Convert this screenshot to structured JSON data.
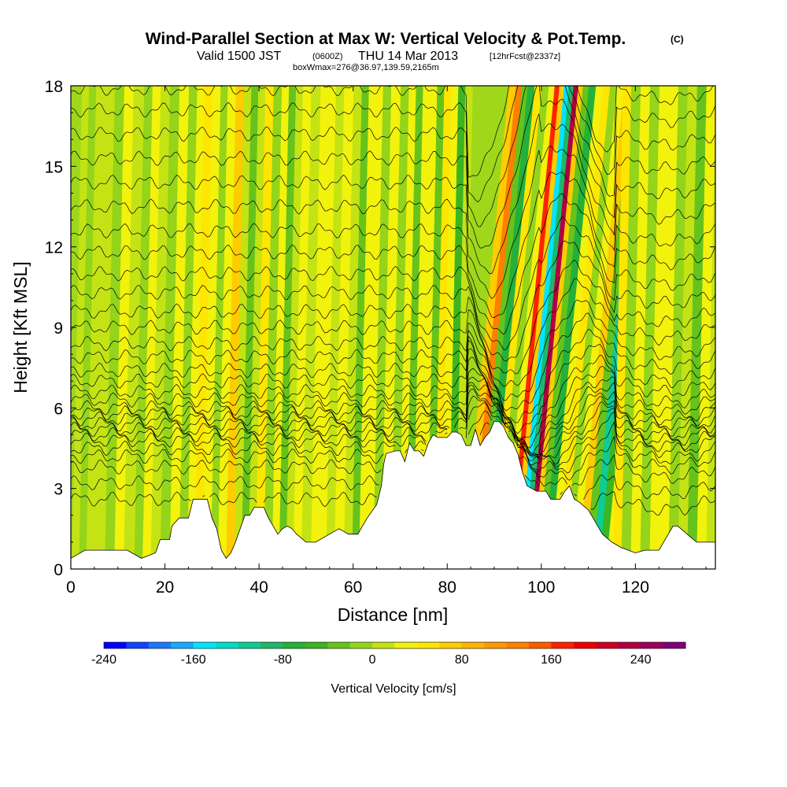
{
  "title": {
    "main": "Wind-Parallel Section at Max W: Vertical Velocity & Pot.Temp.",
    "copyright": "(C)",
    "valid_prefix": "Valid 1500 JST",
    "valid_utc": "(0600Z)",
    "valid_date": "THU 14 Mar 2013",
    "forecast": "[12hrFcst@2337z]",
    "box_info": "boxWmax=276@36.97,139.59,2165m"
  },
  "chart_data": {
    "type": "heatmap",
    "xlabel": "Distance [nm]",
    "ylabel": "Height [Kft MSL]",
    "xlim": [
      0,
      137
    ],
    "ylim": [
      0,
      18
    ],
    "x_ticks": [
      "0",
      "20",
      "40",
      "60",
      "80",
      "100",
      "120"
    ],
    "x_tick_values": [
      0,
      20,
      40,
      60,
      80,
      100,
      120
    ],
    "y_ticks": [
      "0",
      "3",
      "6",
      "9",
      "12",
      "15",
      "18"
    ],
    "y_tick_values": [
      0,
      3,
      6,
      9,
      12,
      15,
      18
    ],
    "colorbar": {
      "label": "Vertical Velocity [cm/s]",
      "min": -240,
      "max": 280,
      "step": 20,
      "tick_labels": [
        "-240",
        "-160",
        "-80",
        "0",
        "80",
        "160",
        "240"
      ],
      "tick_values": [
        -240,
        -160,
        -80,
        0,
        80,
        160,
        240
      ],
      "colors": [
        "#0000ff",
        "#1144ff",
        "#1a78ff",
        "#17aaff",
        "#00e5ff",
        "#00dcc8",
        "#0fcc92",
        "#1db868",
        "#25b03a",
        "#3cb520",
        "#66c31c",
        "#94d41a",
        "#c4e314",
        "#f2f20c",
        "#ffe600",
        "#ffcc00",
        "#ffb300",
        "#ff9900",
        "#ff7f00",
        "#ff5a00",
        "#ff2200",
        "#ee0000",
        "#cc0022",
        "#b00040",
        "#9a005c",
        "#7f0077"
      ]
    },
    "terrain_kft": [
      [
        0,
        0.4
      ],
      [
        3,
        0.7
      ],
      [
        7,
        0.7
      ],
      [
        12,
        0.7
      ],
      [
        15,
        0.4
      ],
      [
        18,
        0.6
      ],
      [
        19,
        1.1
      ],
      [
        21,
        1.1
      ],
      [
        21.5,
        1.6
      ],
      [
        23,
        1.9
      ],
      [
        25,
        1.9
      ],
      [
        26,
        2.6
      ],
      [
        29,
        2.6
      ],
      [
        30,
        1.9
      ],
      [
        31,
        1.5
      ],
      [
        32,
        0.7
      ],
      [
        33,
        0.4
      ],
      [
        34,
        0.6
      ],
      [
        35,
        1.0
      ],
      [
        36,
        1.5
      ],
      [
        37,
        2.0
      ],
      [
        38,
        2.0
      ],
      [
        39,
        2.3
      ],
      [
        41,
        2.3
      ],
      [
        42,
        1.9
      ],
      [
        43,
        1.6
      ],
      [
        44,
        1.3
      ],
      [
        45,
        1.5
      ],
      [
        46,
        1.6
      ],
      [
        47,
        1.5
      ],
      [
        48,
        1.3
      ],
      [
        50,
        1.0
      ],
      [
        52,
        1.0
      ],
      [
        55,
        1.3
      ],
      [
        57,
        1.5
      ],
      [
        59,
        1.3
      ],
      [
        61,
        1.3
      ],
      [
        62,
        1.6
      ],
      [
        63,
        1.9
      ],
      [
        65,
        2.4
      ],
      [
        66,
        3.1
      ],
      [
        66.5,
        3.9
      ],
      [
        67,
        4.3
      ],
      [
        69,
        4.4
      ],
      [
        70,
        4.4
      ],
      [
        71,
        4.0
      ],
      [
        72,
        4.7
      ],
      [
        73,
        4.4
      ],
      [
        74,
        4.4
      ],
      [
        75,
        4.2
      ],
      [
        76,
        4.7
      ],
      [
        77,
        5.0
      ],
      [
        78,
        4.9
      ],
      [
        79,
        4.9
      ],
      [
        80,
        4.9
      ],
      [
        81,
        5.1
      ],
      [
        82,
        5.1
      ],
      [
        83,
        5.0
      ],
      [
        84,
        4.6
      ],
      [
        85,
        4.6
      ],
      [
        86,
        5.2
      ],
      [
        87,
        4.6
      ],
      [
        88,
        4.9
      ],
      [
        89,
        5.1
      ],
      [
        90,
        5.5
      ],
      [
        91,
        5.5
      ],
      [
        92,
        5.3
      ],
      [
        93,
        4.9
      ],
      [
        94,
        4.7
      ],
      [
        95,
        4.3
      ],
      [
        96,
        3.6
      ],
      [
        97,
        3.1
      ],
      [
        99,
        2.9
      ],
      [
        101,
        2.9
      ],
      [
        102,
        2.6
      ],
      [
        104,
        2.6
      ],
      [
        105,
        2.9
      ],
      [
        106,
        3.1
      ],
      [
        107,
        2.6
      ],
      [
        108,
        2.5
      ],
      [
        110,
        2.2
      ],
      [
        111,
        1.9
      ],
      [
        112,
        1.6
      ],
      [
        113,
        1.3
      ],
      [
        115,
        1.0
      ],
      [
        117,
        0.8
      ],
      [
        120,
        0.6
      ],
      [
        122,
        0.7
      ],
      [
        125,
        0.7
      ],
      [
        126,
        1.0
      ],
      [
        128,
        1.6
      ],
      [
        129,
        1.6
      ],
      [
        131,
        1.3
      ],
      [
        133,
        1.0
      ],
      [
        137,
        1.0
      ]
    ],
    "columns": [
      {
        "x": 1,
        "w": 6
      },
      {
        "x": 2.5,
        "w": -10
      },
      {
        "x": 4,
        "w": 15
      },
      {
        "x": 6,
        "w": 8
      },
      {
        "x": 8.5,
        "w": -12
      },
      {
        "x": 10,
        "w": 22
      },
      {
        "x": 12.5,
        "w": 10
      },
      {
        "x": 14.5,
        "w": -8
      },
      {
        "x": 16,
        "w": 30
      },
      {
        "x": 18,
        "w": 15
      },
      {
        "x": 20,
        "w": -10
      },
      {
        "x": 22,
        "w": 20
      },
      {
        "x": 24,
        "w": -15
      },
      {
        "x": 25.5,
        "w": 35
      },
      {
        "x": 27,
        "w": 50
      },
      {
        "x": 29,
        "w": 20
      },
      {
        "x": 30.5,
        "w": -20
      },
      {
        "x": 32,
        "w": 30
      },
      {
        "x": 34,
        "w": 60
      },
      {
        "x": 35.5,
        "w": 5
      },
      {
        "x": 37,
        "w": -30
      },
      {
        "x": 38.5,
        "w": 15
      },
      {
        "x": 40,
        "w": 40
      },
      {
        "x": 42,
        "w": -10
      },
      {
        "x": 43.5,
        "w": 25
      },
      {
        "x": 45,
        "w": -25
      },
      {
        "x": 46.5,
        "w": 15
      },
      {
        "x": 48,
        "w": 35
      },
      {
        "x": 50,
        "w": 0
      },
      {
        "x": 52,
        "w": 20
      },
      {
        "x": 53.5,
        "w": 30
      },
      {
        "x": 55,
        "w": 15
      },
      {
        "x": 57,
        "w": 35
      },
      {
        "x": 59,
        "w": 10
      },
      {
        "x": 60.5,
        "w": -40
      },
      {
        "x": 62,
        "w": 20
      },
      {
        "x": 63.5,
        "w": 30
      },
      {
        "x": 65,
        "w": -20
      },
      {
        "x": 67,
        "w": 25
      },
      {
        "x": 69,
        "w": -10
      },
      {
        "x": 70.5,
        "w": 30
      },
      {
        "x": 72,
        "w": -30
      },
      {
        "x": 73.5,
        "w": 20
      },
      {
        "x": 75,
        "w": 35
      },
      {
        "x": 76.5,
        "w": -40
      },
      {
        "x": 78,
        "w": 40
      },
      {
        "x": 79.5,
        "w": 20
      },
      {
        "x": 81,
        "w": -60
      },
      {
        "x": 82.5,
        "w": 10
      },
      {
        "x": 84,
        "w": 60
      },
      {
        "x": 85.5,
        "w": 130
      },
      {
        "x": 86.5,
        "w": -30
      },
      {
        "x": 88,
        "w": -80
      },
      {
        "x": 89.5,
        "w": 50
      },
      {
        "x": 91,
        "w": -10
      },
      {
        "x": 92.5,
        "w": 30
      },
      {
        "x": 93.5,
        "w": 170
      },
      {
        "x": 94.5,
        "w": 60
      },
      {
        "x": 95.5,
        "w": -150
      },
      {
        "x": 96.5,
        "w": -90
      },
      {
        "x": 97.5,
        "w": 220
      },
      {
        "x": 98.5,
        "w": 60
      },
      {
        "x": 99.5,
        "w": -30
      },
      {
        "x": 101,
        "w": -80
      },
      {
        "x": 102.5,
        "w": 30
      },
      {
        "x": 104,
        "w": 40
      },
      {
        "x": 105.5,
        "w": -10
      },
      {
        "x": 107,
        "w": 30
      },
      {
        "x": 108.5,
        "w": 70
      },
      {
        "x": 110,
        "w": -40
      },
      {
        "x": 111.5,
        "w": -120
      },
      {
        "x": 113,
        "w": -60
      },
      {
        "x": 114.5,
        "w": 20
      },
      {
        "x": 116,
        "w": 40
      },
      {
        "x": 118,
        "w": -20
      },
      {
        "x": 120,
        "w": 30
      },
      {
        "x": 122,
        "w": -15
      },
      {
        "x": 124,
        "w": 20
      },
      {
        "x": 126,
        "w": 35
      },
      {
        "x": 128,
        "w": -10
      },
      {
        "x": 130,
        "w": 15
      },
      {
        "x": 132,
        "w": -25
      },
      {
        "x": 134,
        "w": 20
      },
      {
        "x": 136,
        "w": 5
      }
    ],
    "theta_levels_kft": [
      2.6,
      3.2,
      3.8,
      4.2,
      4.5,
      4.8,
      5.0,
      5.2,
      5.4,
      5.6,
      5.8,
      6.0,
      6.3,
      6.6,
      7.0,
      7.4,
      7.9,
      8.4,
      9.0,
      9.6,
      10.3,
      11.0,
      11.8,
      12.6,
      13.5,
      14.4,
      15.3,
      16.2,
      17.1,
      17.9
    ]
  }
}
